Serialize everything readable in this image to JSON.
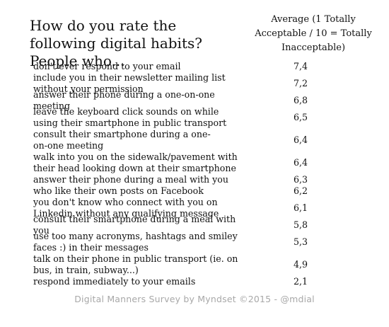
{
  "title": "How do you rate the following digital habits? People who...",
  "column_header": "Average (1 Totally Acceptable / 10 = Totally Inacceptable)",
  "footer": "Digital Manners Survey by Myndset ©2015 - @mdial",
  "chart_data": {
    "type": "table",
    "title": "How do you rate the following digital habits? People who...",
    "columns": [
      "",
      "Average (1 Totally Acceptable / 10 = Totally Inacceptable)"
    ],
    "rows": [
      {
        "label": "don't ever respond to your email",
        "value": "7,4"
      },
      {
        "label": "include you in their newsletter mailing list without your permission",
        "value": "7,2"
      },
      {
        "label": "answer their phone during a one-on-one meeting",
        "value": "6,8"
      },
      {
        "label": "leave the keyboard click sounds on while using their smartphone in public transport",
        "value": "6,5"
      },
      {
        "label": "consult their smartphone during a one-on-one meeting",
        "value": "6,4"
      },
      {
        "label": "walk into you on the sidewalk/pavement with their head looking down at their smartphone",
        "value": "6,4"
      },
      {
        "label": "answer their phone during a meal with you",
        "value": "6,3"
      },
      {
        "label": "who like their own posts on Facebook",
        "value": "6,2"
      },
      {
        "label": "you don't know who connect with you on Linkedin without any qualifying message",
        "value": "6,1"
      },
      {
        "label": "consult their smartphone during a meal with you",
        "value": "5,8"
      },
      {
        "label": "use too many acronyms, hashtags and smiley faces :) in their messages",
        "value": "5,3"
      },
      {
        "label": "talk on their phone in public transport (ie. on bus, in train, subway...)",
        "value": "4,9"
      },
      {
        "label": "respond immediately to your emails",
        "value": "2,1"
      }
    ]
  }
}
